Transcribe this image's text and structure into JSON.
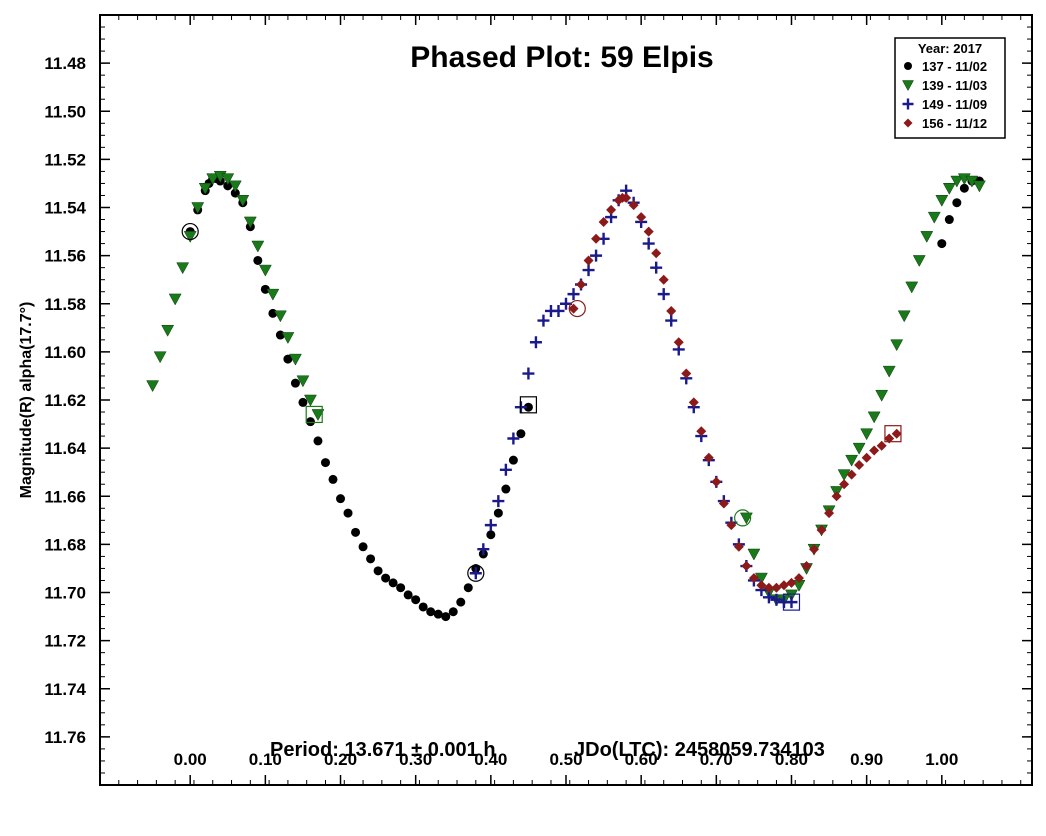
{
  "chart_data": {
    "type": "scatter",
    "title": "Phased Plot: 59 Elpis",
    "xlabel": "",
    "ylabel": "Magnitude(R) alpha(17.7°)",
    "xlim": [
      -0.12,
      1.12
    ],
    "ylim": [
      11.46,
      11.78
    ],
    "y_inverted": true,
    "x_ticks": [
      0.0,
      0.1,
      0.2,
      0.3,
      0.4,
      0.5,
      0.6,
      0.7,
      0.8,
      0.9,
      1.0
    ],
    "x_tick_labels": [
      "0.00",
      "0.10",
      "0.20",
      "0.30",
      "0.40",
      "0.50",
      "0.60",
      "0.70",
      "0.80",
      "0.90",
      "1.00"
    ],
    "y_ticks": [
      11.48,
      11.5,
      11.52,
      11.54,
      11.56,
      11.58,
      11.6,
      11.62,
      11.64,
      11.66,
      11.68,
      11.7,
      11.72,
      11.74,
      11.76
    ],
    "y_tick_labels": [
      "11.48",
      "11.50",
      "11.52",
      "11.54",
      "11.56",
      "11.58",
      "11.60",
      "11.62",
      "11.64",
      "11.66",
      "11.68",
      "11.70",
      "11.72",
      "11.74",
      "11.76"
    ],
    "grid": false,
    "legend": {
      "title": "Year: 2017",
      "position": "top-right"
    },
    "annotation": {
      "period": "Period: 13.671 ± 0.001 h",
      "epoch": "JDo(LTC): 2458059.734103"
    },
    "series": [
      {
        "name": "137 - 11/02",
        "marker": "circle",
        "color": "#000000",
        "x": [
          0.0,
          0.01,
          0.02,
          0.025,
          0.03,
          0.035,
          0.04,
          0.05,
          0.06,
          0.07,
          0.08,
          0.09,
          0.1,
          0.11,
          0.12,
          0.13,
          0.14,
          0.15,
          0.16,
          0.17,
          0.18,
          0.19,
          0.2,
          0.21,
          0.22,
          0.23,
          0.24,
          0.25,
          0.26,
          0.27,
          0.28,
          0.29,
          0.3,
          0.31,
          0.32,
          0.33,
          0.34,
          0.35,
          0.36,
          0.37,
          0.38,
          0.39,
          0.4,
          0.41,
          0.42,
          0.43,
          0.44,
          0.45,
          1.0,
          1.01,
          1.02,
          1.03,
          1.04,
          1.05
        ],
        "y": [
          11.55,
          11.541,
          11.533,
          11.53,
          11.528,
          11.528,
          11.529,
          11.531,
          11.534,
          11.538,
          11.548,
          11.562,
          11.574,
          11.584,
          11.593,
          11.603,
          11.613,
          11.621,
          11.629,
          11.637,
          11.646,
          11.653,
          11.661,
          11.667,
          11.675,
          11.681,
          11.686,
          11.691,
          11.694,
          11.696,
          11.698,
          11.701,
          11.703,
          11.706,
          11.708,
          11.709,
          11.71,
          11.708,
          11.704,
          11.698,
          11.69,
          11.684,
          11.676,
          11.667,
          11.657,
          11.645,
          11.634,
          11.623,
          11.555,
          11.545,
          11.538,
          11.532,
          11.529,
          11.529
        ]
      },
      {
        "name": "139 - 11/03",
        "marker": "triangle-down",
        "color": "#1a7a1a",
        "x": [
          -0.05,
          -0.04,
          -0.03,
          -0.02,
          -0.01,
          0.0,
          0.01,
          0.02,
          0.03,
          0.04,
          0.05,
          0.06,
          0.07,
          0.08,
          0.09,
          0.1,
          0.11,
          0.12,
          0.13,
          0.14,
          0.15,
          0.16,
          0.17,
          0.74,
          0.75,
          0.76,
          0.77,
          0.78,
          0.79,
          0.8,
          0.81,
          0.82,
          0.83,
          0.84,
          0.85,
          0.86,
          0.87,
          0.88,
          0.89,
          0.9,
          0.91,
          0.92,
          0.93,
          0.94,
          0.95,
          0.96,
          0.97,
          0.98,
          0.99,
          1.0,
          1.01,
          1.02,
          1.03,
          1.04,
          1.05
        ],
        "y": [
          11.614,
          11.602,
          11.591,
          11.578,
          11.565,
          11.552,
          11.54,
          11.532,
          11.528,
          11.527,
          11.528,
          11.531,
          11.537,
          11.546,
          11.556,
          11.566,
          11.576,
          11.585,
          11.594,
          11.603,
          11.612,
          11.62,
          11.626,
          11.669,
          11.684,
          11.694,
          11.7,
          11.703,
          11.703,
          11.701,
          11.697,
          11.69,
          11.682,
          11.674,
          11.666,
          11.658,
          11.651,
          11.645,
          11.64,
          11.634,
          11.627,
          11.618,
          11.608,
          11.597,
          11.585,
          11.573,
          11.562,
          11.552,
          11.544,
          11.537,
          11.532,
          11.529,
          11.528,
          11.529,
          11.531
        ]
      },
      {
        "name": "149 - 11/09",
        "marker": "plus",
        "color": "#1a1a8c",
        "x": [
          0.38,
          0.39,
          0.4,
          0.41,
          0.42,
          0.43,
          0.44,
          0.45,
          0.46,
          0.47,
          0.48,
          0.49,
          0.5,
          0.51,
          0.52,
          0.53,
          0.54,
          0.55,
          0.56,
          0.57,
          0.58,
          0.59,
          0.6,
          0.61,
          0.62,
          0.63,
          0.64,
          0.65,
          0.66,
          0.67,
          0.68,
          0.69,
          0.7,
          0.71,
          0.72,
          0.73,
          0.74,
          0.75,
          0.76,
          0.77,
          0.78,
          0.79,
          0.8
        ],
        "y": [
          11.692,
          11.682,
          11.672,
          11.662,
          11.649,
          11.636,
          11.623,
          11.609,
          11.596,
          11.587,
          11.583,
          11.583,
          11.58,
          11.576,
          11.572,
          11.566,
          11.56,
          11.553,
          11.544,
          11.537,
          11.533,
          11.538,
          11.546,
          11.555,
          11.565,
          11.576,
          11.587,
          11.599,
          11.611,
          11.623,
          11.635,
          11.645,
          11.654,
          11.662,
          11.671,
          11.68,
          11.689,
          11.695,
          11.699,
          11.702,
          11.703,
          11.704,
          11.704
        ]
      },
      {
        "name": "156 - 11/12",
        "marker": "diamond",
        "color": "#8c1a1a",
        "x": [
          0.51,
          0.52,
          0.53,
          0.54,
          0.55,
          0.56,
          0.57,
          0.575,
          0.58,
          0.59,
          0.6,
          0.61,
          0.62,
          0.63,
          0.64,
          0.65,
          0.66,
          0.67,
          0.68,
          0.69,
          0.7,
          0.71,
          0.72,
          0.73,
          0.74,
          0.75,
          0.76,
          0.77,
          0.78,
          0.79,
          0.8,
          0.81,
          0.82,
          0.83,
          0.84,
          0.85,
          0.86,
          0.87,
          0.88,
          0.89,
          0.9,
          0.91,
          0.92,
          0.93,
          0.94
        ],
        "y": [
          11.582,
          11.572,
          11.562,
          11.553,
          11.546,
          11.541,
          11.537,
          11.536,
          11.536,
          11.539,
          11.544,
          11.55,
          11.559,
          11.57,
          11.583,
          11.596,
          11.609,
          11.621,
          11.633,
          11.644,
          11.654,
          11.663,
          11.672,
          11.681,
          11.689,
          11.694,
          11.697,
          11.698,
          11.698,
          11.697,
          11.696,
          11.694,
          11.689,
          11.682,
          11.674,
          11.667,
          11.66,
          11.655,
          11.651,
          11.647,
          11.644,
          11.641,
          11.639,
          11.636,
          11.634
        ]
      }
    ],
    "highlighted_points": [
      {
        "series": "137 - 11/02",
        "shape": "circle",
        "x": 0.0,
        "y": 11.55
      },
      {
        "series": "137 - 11/02",
        "shape": "circle",
        "x": 0.38,
        "y": 11.692
      },
      {
        "series": "137 - 11/02",
        "shape": "square",
        "x": 0.45,
        "y": 11.622
      },
      {
        "series": "139 - 11/03",
        "shape": "square",
        "x": 0.165,
        "y": 11.626
      },
      {
        "series": "139 - 11/03",
        "shape": "circle",
        "x": 0.735,
        "y": 11.669
      },
      {
        "series": "149 - 11/09",
        "shape": "square",
        "x": 0.8,
        "y": 11.704
      },
      {
        "series": "156 - 11/12",
        "shape": "circle",
        "x": 0.515,
        "y": 11.582
      },
      {
        "series": "156 - 11/12",
        "shape": "square",
        "x": 0.935,
        "y": 11.634
      }
    ]
  }
}
